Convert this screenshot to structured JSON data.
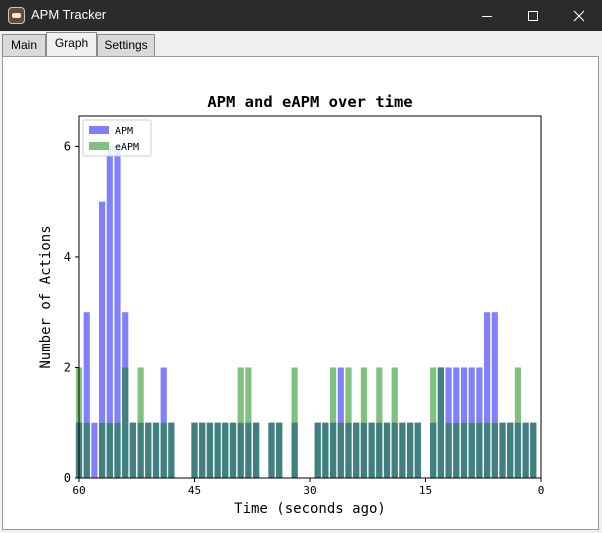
{
  "window": {
    "title": "APM Tracker",
    "icons": {
      "app": "apm-app-icon",
      "minimize": "minimize-icon",
      "maximize": "maximize-icon",
      "close": "close-icon"
    }
  },
  "tabs": [
    {
      "label": "Main",
      "active": false
    },
    {
      "label": "Graph",
      "active": true
    },
    {
      "label": "Settings",
      "active": false
    }
  ],
  "chart_data": {
    "type": "bar",
    "title": "APM and eAPM over time",
    "xlabel": "Time (seconds ago)",
    "ylabel": "Number of Actions",
    "xlim": [
      60,
      0
    ],
    "ylim": [
      0,
      6.55
    ],
    "xticks": [
      60,
      45,
      30,
      15,
      0
    ],
    "yticks": [
      0,
      2,
      4,
      6
    ],
    "legend_position": "top-left",
    "colors": {
      "APM": "#8080ff",
      "eAPM": "#80c080",
      "overlap": "#408080"
    },
    "series": [
      {
        "name": "APM",
        "x": [
          60,
          59,
          58,
          57,
          56,
          55,
          54,
          53,
          52,
          51,
          50,
          49,
          48,
          45,
          44,
          43,
          42,
          41,
          40,
          39,
          38,
          37,
          35,
          34,
          32,
          29,
          28,
          27,
          26,
          25,
          24,
          23,
          22,
          21,
          20,
          19,
          18,
          17,
          16,
          14,
          13,
          12,
          11,
          10,
          9,
          8,
          7,
          6,
          5,
          4,
          3,
          2,
          1
        ],
        "values": [
          1,
          3,
          1,
          5,
          6,
          6,
          3,
          1,
          1,
          1,
          1,
          2,
          1,
          1,
          1,
          1,
          1,
          1,
          1,
          1,
          1,
          1,
          1,
          1,
          1,
          1,
          1,
          1,
          2,
          1,
          1,
          1,
          1,
          1,
          1,
          1,
          1,
          1,
          1,
          1,
          2,
          2,
          2,
          2,
          2,
          2,
          3,
          3,
          1,
          1,
          1,
          1,
          1
        ]
      },
      {
        "name": "eAPM",
        "x": [
          60,
          59,
          57,
          56,
          55,
          54,
          53,
          52,
          51,
          50,
          49,
          48,
          45,
          44,
          43,
          42,
          41,
          40,
          39,
          38,
          37,
          35,
          34,
          32,
          29,
          28,
          27,
          26,
          25,
          24,
          23,
          22,
          21,
          20,
          19,
          18,
          17,
          16,
          14,
          13,
          12,
          11,
          10,
          9,
          8,
          7,
          6,
          5,
          4,
          3,
          2,
          1
        ],
        "values": [
          2,
          1,
          1,
          1,
          1,
          2,
          1,
          2,
          1,
          1,
          1,
          1,
          1,
          1,
          1,
          1,
          1,
          1,
          2,
          2,
          1,
          1,
          1,
          2,
          1,
          1,
          2,
          1,
          2,
          1,
          2,
          1,
          2,
          1,
          2,
          1,
          1,
          1,
          2,
          2,
          1,
          1,
          1,
          1,
          1,
          1,
          1,
          1,
          1,
          2,
          1,
          1
        ]
      }
    ]
  }
}
